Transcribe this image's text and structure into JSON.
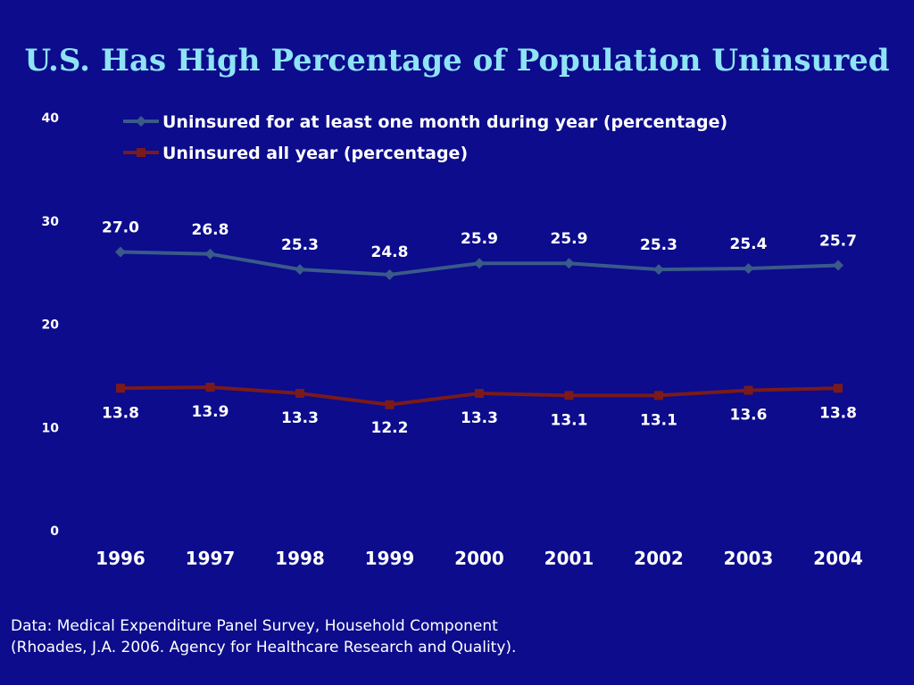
{
  "chart_data": {
    "type": "line",
    "title": "U.S. Has High Percentage of Population Uninsured",
    "categories": [
      "1996",
      "1997",
      "1998",
      "1999",
      "2000",
      "2001",
      "2002",
      "2003",
      "2004"
    ],
    "ylim": [
      0,
      40
    ],
    "yticks": [
      "0",
      "10",
      "20",
      "30",
      "40"
    ],
    "grid": false,
    "legend_position": "top",
    "series": [
      {
        "name": "Uninsured for at least one month during year (percentage)",
        "values": [
          27.0,
          26.8,
          25.3,
          24.8,
          25.9,
          25.9,
          25.3,
          25.4,
          25.7
        ],
        "labels": [
          "27.0",
          "26.8",
          "25.3",
          "24.8",
          "25.9",
          "25.9",
          "25.3",
          "25.4",
          "25.7"
        ],
        "color": "#3a5a8a",
        "marker": "diamond"
      },
      {
        "name": "Uninsured all year (percentage)",
        "values": [
          13.8,
          13.9,
          13.3,
          12.2,
          13.3,
          13.1,
          13.1,
          13.6,
          13.8
        ],
        "labels": [
          "13.8",
          "13.9",
          "13.3",
          "12.2",
          "13.3",
          "13.1",
          "13.1",
          "13.6",
          "13.8"
        ],
        "color": "#7a1a1a",
        "marker": "square"
      }
    ]
  },
  "source": {
    "line1": "Data: Medical Expenditure Panel Survey, Household Component",
    "line2": "(Rhoades, J.A. 2006. Agency for Healthcare Research and Quality)."
  },
  "colors": {
    "background": "#0c0c8c",
    "title": "#8ee3f5",
    "text": "#ffffff"
  }
}
